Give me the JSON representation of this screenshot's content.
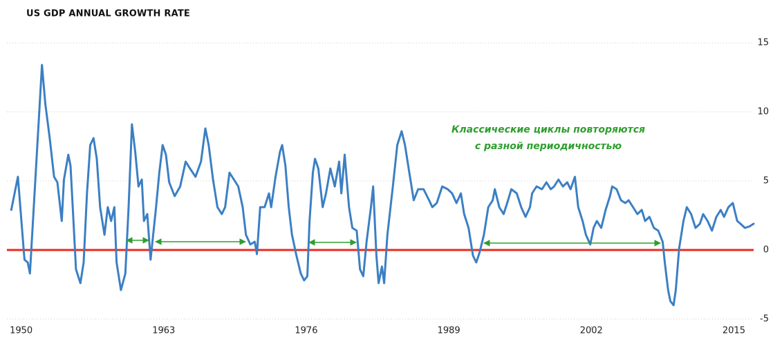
{
  "chart_data": {
    "type": "line",
    "title": "US GDP ANNUAL GROWTH RATE",
    "annotation": [
      "Классические циклы повторяются",
      "с разной периодичностью"
    ],
    "annotation_color": "#2f9e2f",
    "x": [
      1949.1,
      1949.7,
      1950.3,
      1950.6,
      1950.8,
      1951.9,
      1952.2,
      1952.6,
      1953.0,
      1953.3,
      1953.7,
      1953.9,
      1954.3,
      1954.5,
      1954.7,
      1955.0,
      1955.4,
      1955.7,
      1956.0,
      1956.3,
      1956.6,
      1956.9,
      1957.2,
      1957.6,
      1957.9,
      1958.2,
      1958.5,
      1958.7,
      1959.1,
      1959.5,
      1959.8,
      1960.1,
      1960.4,
      1960.7,
      1961.0,
      1961.2,
      1961.5,
      1961.8,
      1962.3,
      1962.6,
      1962.9,
      1963.2,
      1963.5,
      1964.0,
      1964.5,
      1965.0,
      1965.4,
      1965.9,
      1966.4,
      1966.8,
      1967.1,
      1967.5,
      1967.9,
      1968.3,
      1968.6,
      1969.0,
      1969.4,
      1969.8,
      1970.2,
      1970.5,
      1970.9,
      1971.3,
      1971.5,
      1971.8,
      1972.2,
      1972.6,
      1972.8,
      1973.2,
      1973.6,
      1973.8,
      1974.1,
      1974.4,
      1974.7,
      1975.1,
      1975.5,
      1975.8,
      1976.1,
      1976.3,
      1976.6,
      1976.8,
      1977.1,
      1977.5,
      1977.8,
      1978.2,
      1978.6,
      1979.0,
      1979.2,
      1979.5,
      1979.9,
      1980.2,
      1980.6,
      1980.9,
      1981.2,
      1981.5,
      1981.9,
      1982.1,
      1982.4,
      1982.6,
      1982.9,
      1983.1,
      1983.4,
      1983.9,
      1984.3,
      1984.7,
      1985.0,
      1985.4,
      1985.8,
      1986.2,
      1986.7,
      1987.2,
      1987.5,
      1987.9,
      1988.4,
      1988.9,
      1989.3,
      1989.7,
      1990.1,
      1990.4,
      1990.8,
      1991.2,
      1991.5,
      1991.8,
      1992.2,
      1992.6,
      1993.0,
      1993.2,
      1993.6,
      1994.0,
      1994.4,
      1994.7,
      1995.2,
      1995.6,
      1996.0,
      1996.4,
      1996.6,
      1997.0,
      1997.5,
      1997.9,
      1998.3,
      1998.6,
      1999.0,
      1999.4,
      1999.8,
      2000.1,
      2000.5,
      2000.8,
      2001.2,
      2001.5,
      2001.9,
      2002.2,
      2002.5,
      2002.9,
      2003.3,
      2003.7,
      2003.9,
      2004.3,
      2004.7,
      2005.1,
      2005.4,
      2005.8,
      2006.2,
      2006.6,
      2006.9,
      2007.3,
      2007.7,
      2008.1,
      2008.5,
      2008.7,
      2009.0,
      2009.2,
      2009.5,
      2009.7,
      2010.0,
      2010.4,
      2010.7,
      2011.1,
      2011.5,
      2011.9,
      2012.2,
      2012.6,
      2013.0,
      2013.4,
      2013.8,
      2014.1,
      2014.5,
      2014.9,
      2015.3,
      2015.6,
      2016.0,
      2016.4,
      2016.8
    ],
    "series": [
      {
        "color": "#3b7fc4",
        "values": [
          2.9,
          5.3,
          -0.7,
          -0.9,
          -1.7,
          13.4,
          10.6,
          8.1,
          5.3,
          4.9,
          2.1,
          5.1,
          6.9,
          6.1,
          3.1,
          -1.4,
          -2.4,
          -0.9,
          4.1,
          7.6,
          8.1,
          6.6,
          3.1,
          1.1,
          3.1,
          2.1,
          3.1,
          -0.9,
          -2.9,
          -1.7,
          3.1,
          9.1,
          7.1,
          4.6,
          5.1,
          2.1,
          2.6,
          -0.7,
          3.1,
          5.6,
          7.6,
          6.9,
          4.9,
          3.9,
          4.6,
          6.4,
          5.9,
          5.3,
          6.4,
          8.8,
          7.6,
          5.1,
          3.1,
          2.6,
          3.1,
          5.6,
          5.1,
          4.6,
          3.1,
          1.1,
          0.4,
          0.6,
          -0.3,
          3.1,
          3.1,
          4.1,
          3.1,
          5.3,
          7.1,
          7.6,
          6.1,
          3.1,
          1.1,
          -0.4,
          -1.7,
          -2.2,
          -1.9,
          2.1,
          5.6,
          6.6,
          5.9,
          3.1,
          4.1,
          5.9,
          4.6,
          6.4,
          4.1,
          6.9,
          3.1,
          1.6,
          1.4,
          -1.4,
          -1.9,
          0.6,
          3.1,
          4.6,
          -0.4,
          -2.4,
          -1.2,
          -2.4,
          1.1,
          4.6,
          7.6,
          8.6,
          7.6,
          5.6,
          3.6,
          4.4,
          4.4,
          3.6,
          3.1,
          3.4,
          4.6,
          4.4,
          4.1,
          3.4,
          4.1,
          2.6,
          1.6,
          -0.4,
          -0.9,
          -0.2,
          1.1,
          3.1,
          3.6,
          4.4,
          3.1,
          2.6,
          3.6,
          4.4,
          4.1,
          3.1,
          2.4,
          3.1,
          4.1,
          4.6,
          4.4,
          4.9,
          4.4,
          4.6,
          5.1,
          4.6,
          4.9,
          4.4,
          5.3,
          3.1,
          2.1,
          1.1,
          0.4,
          1.6,
          2.1,
          1.6,
          2.9,
          3.9,
          4.6,
          4.4,
          3.6,
          3.4,
          3.6,
          3.1,
          2.6,
          2.9,
          2.1,
          2.4,
          1.6,
          1.4,
          0.6,
          -0.9,
          -2.9,
          -3.7,
          -4.0,
          -2.9,
          0.1,
          2.1,
          3.1,
          2.6,
          1.6,
          1.9,
          2.6,
          2.1,
          1.4,
          2.4,
          2.9,
          2.4,
          3.1,
          3.4,
          2.1,
          1.9,
          1.6,
          1.7,
          1.9
        ]
      }
    ],
    "xlim": [
      1948.7,
      2016.8
    ],
    "xticks": [
      1950,
      1963,
      1976,
      1989,
      2002,
      2015
    ],
    "ylim": [
      -5.5,
      15.5
    ],
    "yticks": [
      15,
      10,
      5,
      0,
      -5
    ],
    "grid": true,
    "reference_line": {
      "value": 0,
      "color": "#e8291f"
    }
  }
}
